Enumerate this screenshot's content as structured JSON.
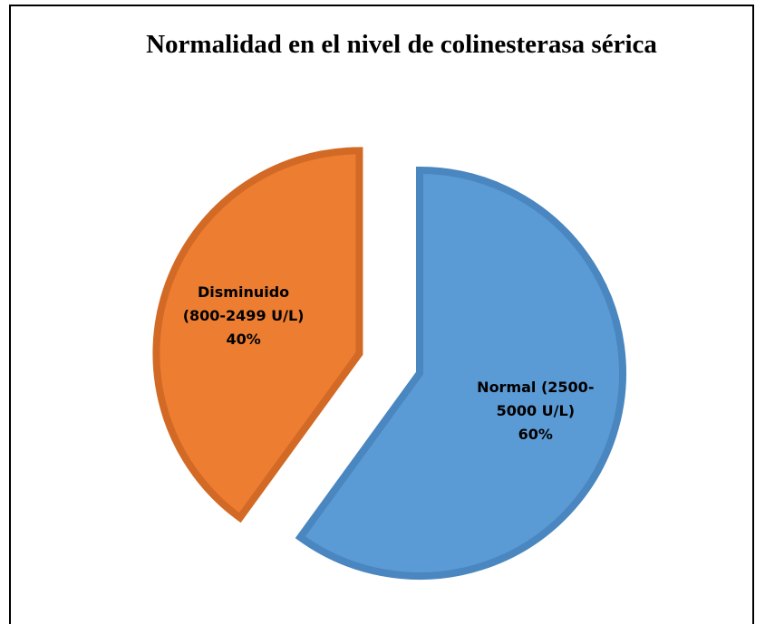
{
  "chart_data": {
    "type": "pie",
    "title": "Normalidad en el nivel de colinesterasa sérica",
    "categories": [
      "Normal (2500-5000 U/L)",
      "Disminuido (800-2499 U/L)"
    ],
    "values": [
      60,
      40
    ],
    "value_labels": [
      "60%",
      "40%"
    ],
    "colors": [
      "#5b9bd5",
      "#ed7d31"
    ]
  }
}
